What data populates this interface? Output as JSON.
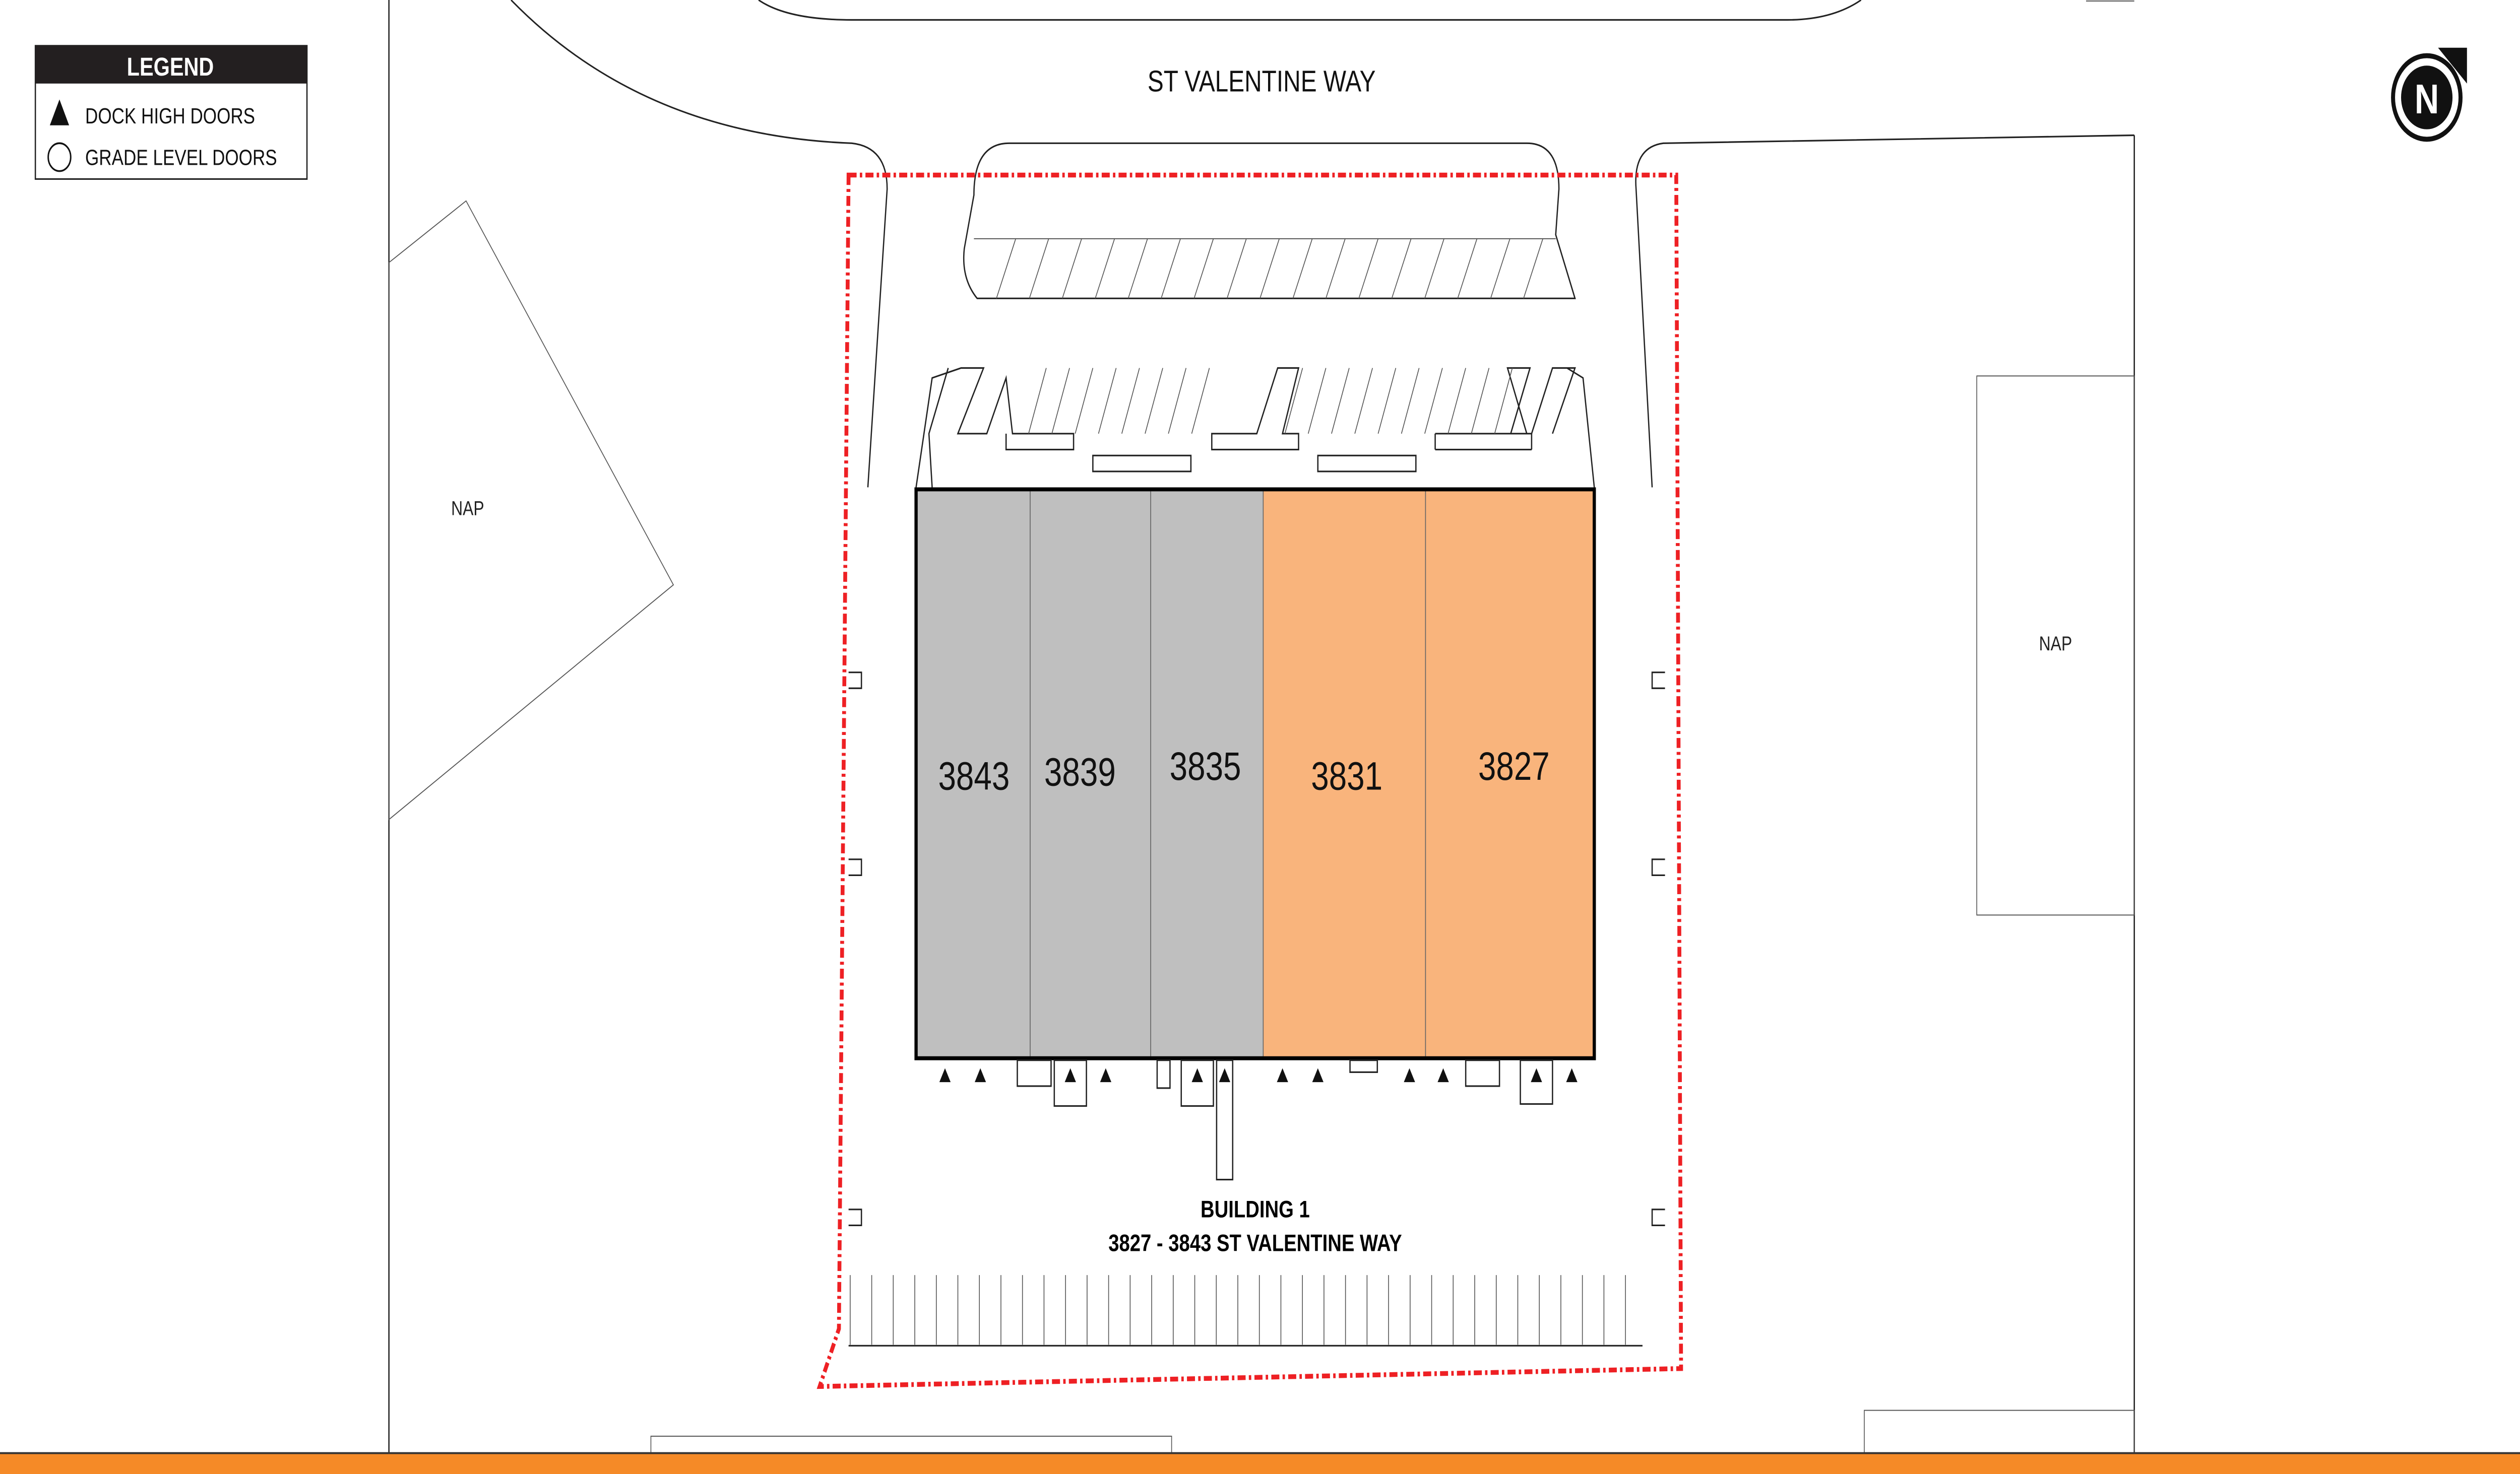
{
  "street_label": "ST VALENTINE WAY",
  "legend": {
    "title": "LEGEND",
    "items": [
      {
        "icon": "triangle-icon",
        "label": "DOCK HIGH DOORS"
      },
      {
        "icon": "circle-icon",
        "label": "GRADE LEVEL DOORS"
      }
    ]
  },
  "north_arrow": {
    "label": "N"
  },
  "nap_labels": [
    "NAP",
    "NAP"
  ],
  "building": {
    "title": "BUILDING 1",
    "address": "3827 - 3843  ST VALENTINE WAY",
    "units": [
      {
        "number": "3843",
        "status_color": "#bfbfbf"
      },
      {
        "number": "3839",
        "status_color": "#bfbfbf"
      },
      {
        "number": "3835",
        "status_color": "#bfbfbf"
      },
      {
        "number": "3831",
        "status_color": "#f9b47c"
      },
      {
        "number": "3827",
        "status_color": "#f9b47c"
      }
    ]
  },
  "colors": {
    "boundary": "#ee2024",
    "footer_bar": "#f58a27",
    "unavailable_unit": "#bfbfbf",
    "highlighted_unit": "#f9b47c"
  }
}
